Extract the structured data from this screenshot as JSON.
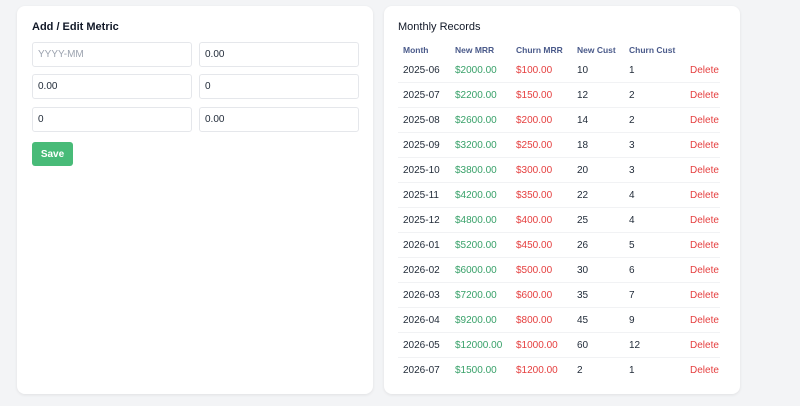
{
  "form": {
    "title": "Add / Edit Metric",
    "month_placeholder": "YYYY-MM",
    "fields": [
      "0.00",
      "0.00",
      "0",
      "0",
      "0.00"
    ],
    "save_label": "Save"
  },
  "records": {
    "title": "Monthly Records",
    "headers": [
      "Month",
      "New MRR",
      "Churn MRR",
      "New Cust",
      "Churn Cust"
    ],
    "delete_label": "Delete",
    "rows": [
      {
        "month": "2025-06",
        "new_mrr": "$2000.00",
        "churn_mrr": "$100.00",
        "new_cust": "10",
        "churn_cust": "1"
      },
      {
        "month": "2025-07",
        "new_mrr": "$2200.00",
        "churn_mrr": "$150.00",
        "new_cust": "12",
        "churn_cust": "2"
      },
      {
        "month": "2025-08",
        "new_mrr": "$2600.00",
        "churn_mrr": "$200.00",
        "new_cust": "14",
        "churn_cust": "2"
      },
      {
        "month": "2025-09",
        "new_mrr": "$3200.00",
        "churn_mrr": "$250.00",
        "new_cust": "18",
        "churn_cust": "3"
      },
      {
        "month": "2025-10",
        "new_mrr": "$3800.00",
        "churn_mrr": "$300.00",
        "new_cust": "20",
        "churn_cust": "3"
      },
      {
        "month": "2025-11",
        "new_mrr": "$4200.00",
        "churn_mrr": "$350.00",
        "new_cust": "22",
        "churn_cust": "4"
      },
      {
        "month": "2025-12",
        "new_mrr": "$4800.00",
        "churn_mrr": "$400.00",
        "new_cust": "25",
        "churn_cust": "4"
      },
      {
        "month": "2026-01",
        "new_mrr": "$5200.00",
        "churn_mrr": "$450.00",
        "new_cust": "26",
        "churn_cust": "5"
      },
      {
        "month": "2026-02",
        "new_mrr": "$6000.00",
        "churn_mrr": "$500.00",
        "new_cust": "30",
        "churn_cust": "6"
      },
      {
        "month": "2026-03",
        "new_mrr": "$7200.00",
        "churn_mrr": "$600.00",
        "new_cust": "35",
        "churn_cust": "7"
      },
      {
        "month": "2026-04",
        "new_mrr": "$9200.00",
        "churn_mrr": "$800.00",
        "new_cust": "45",
        "churn_cust": "9"
      },
      {
        "month": "2026-05",
        "new_mrr": "$12000.00",
        "churn_mrr": "$1000.00",
        "new_cust": "60",
        "churn_cust": "12"
      },
      {
        "month": "2026-07",
        "new_mrr": "$1500.00",
        "churn_mrr": "$1200.00",
        "new_cust": "2",
        "churn_cust": "1"
      }
    ]
  },
  "colors": {
    "positive": "#38a169",
    "negative": "#e53e3e",
    "save_button": "#48bb78"
  }
}
